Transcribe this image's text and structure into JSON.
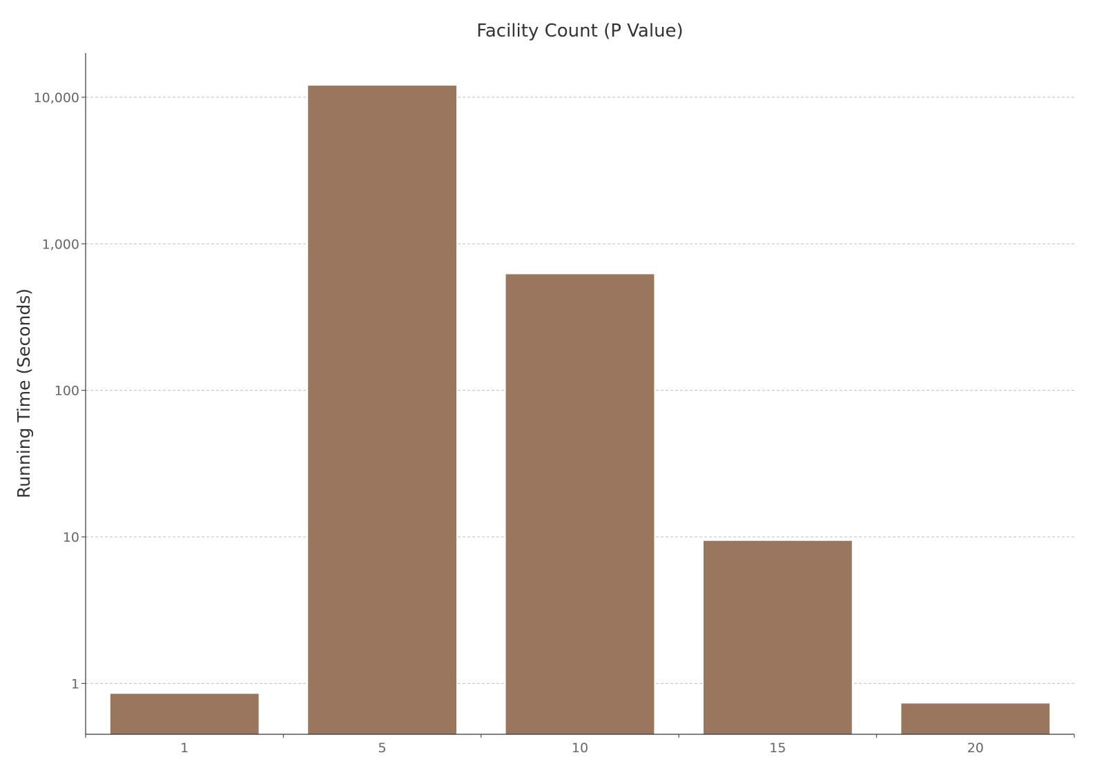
{
  "chart_data": {
    "type": "bar",
    "title": "Facility Count (P Value)",
    "xlabel": "",
    "ylabel": "Running Time (Seconds)",
    "yscale": "log",
    "ylim": [
      0.45,
      20000
    ],
    "yticks": [
      1,
      10,
      100,
      1000,
      10000
    ],
    "ytick_labels": [
      "1",
      "10",
      "100",
      "1,000",
      "10,000"
    ],
    "categories": [
      "1",
      "5",
      "10",
      "15",
      "20"
    ],
    "values": [
      0.85,
      12000,
      620,
      9.4,
      0.73
    ],
    "grid": "horizontal dashed",
    "legend": "none",
    "colors": {
      "bar": "#9B765E"
    }
  }
}
